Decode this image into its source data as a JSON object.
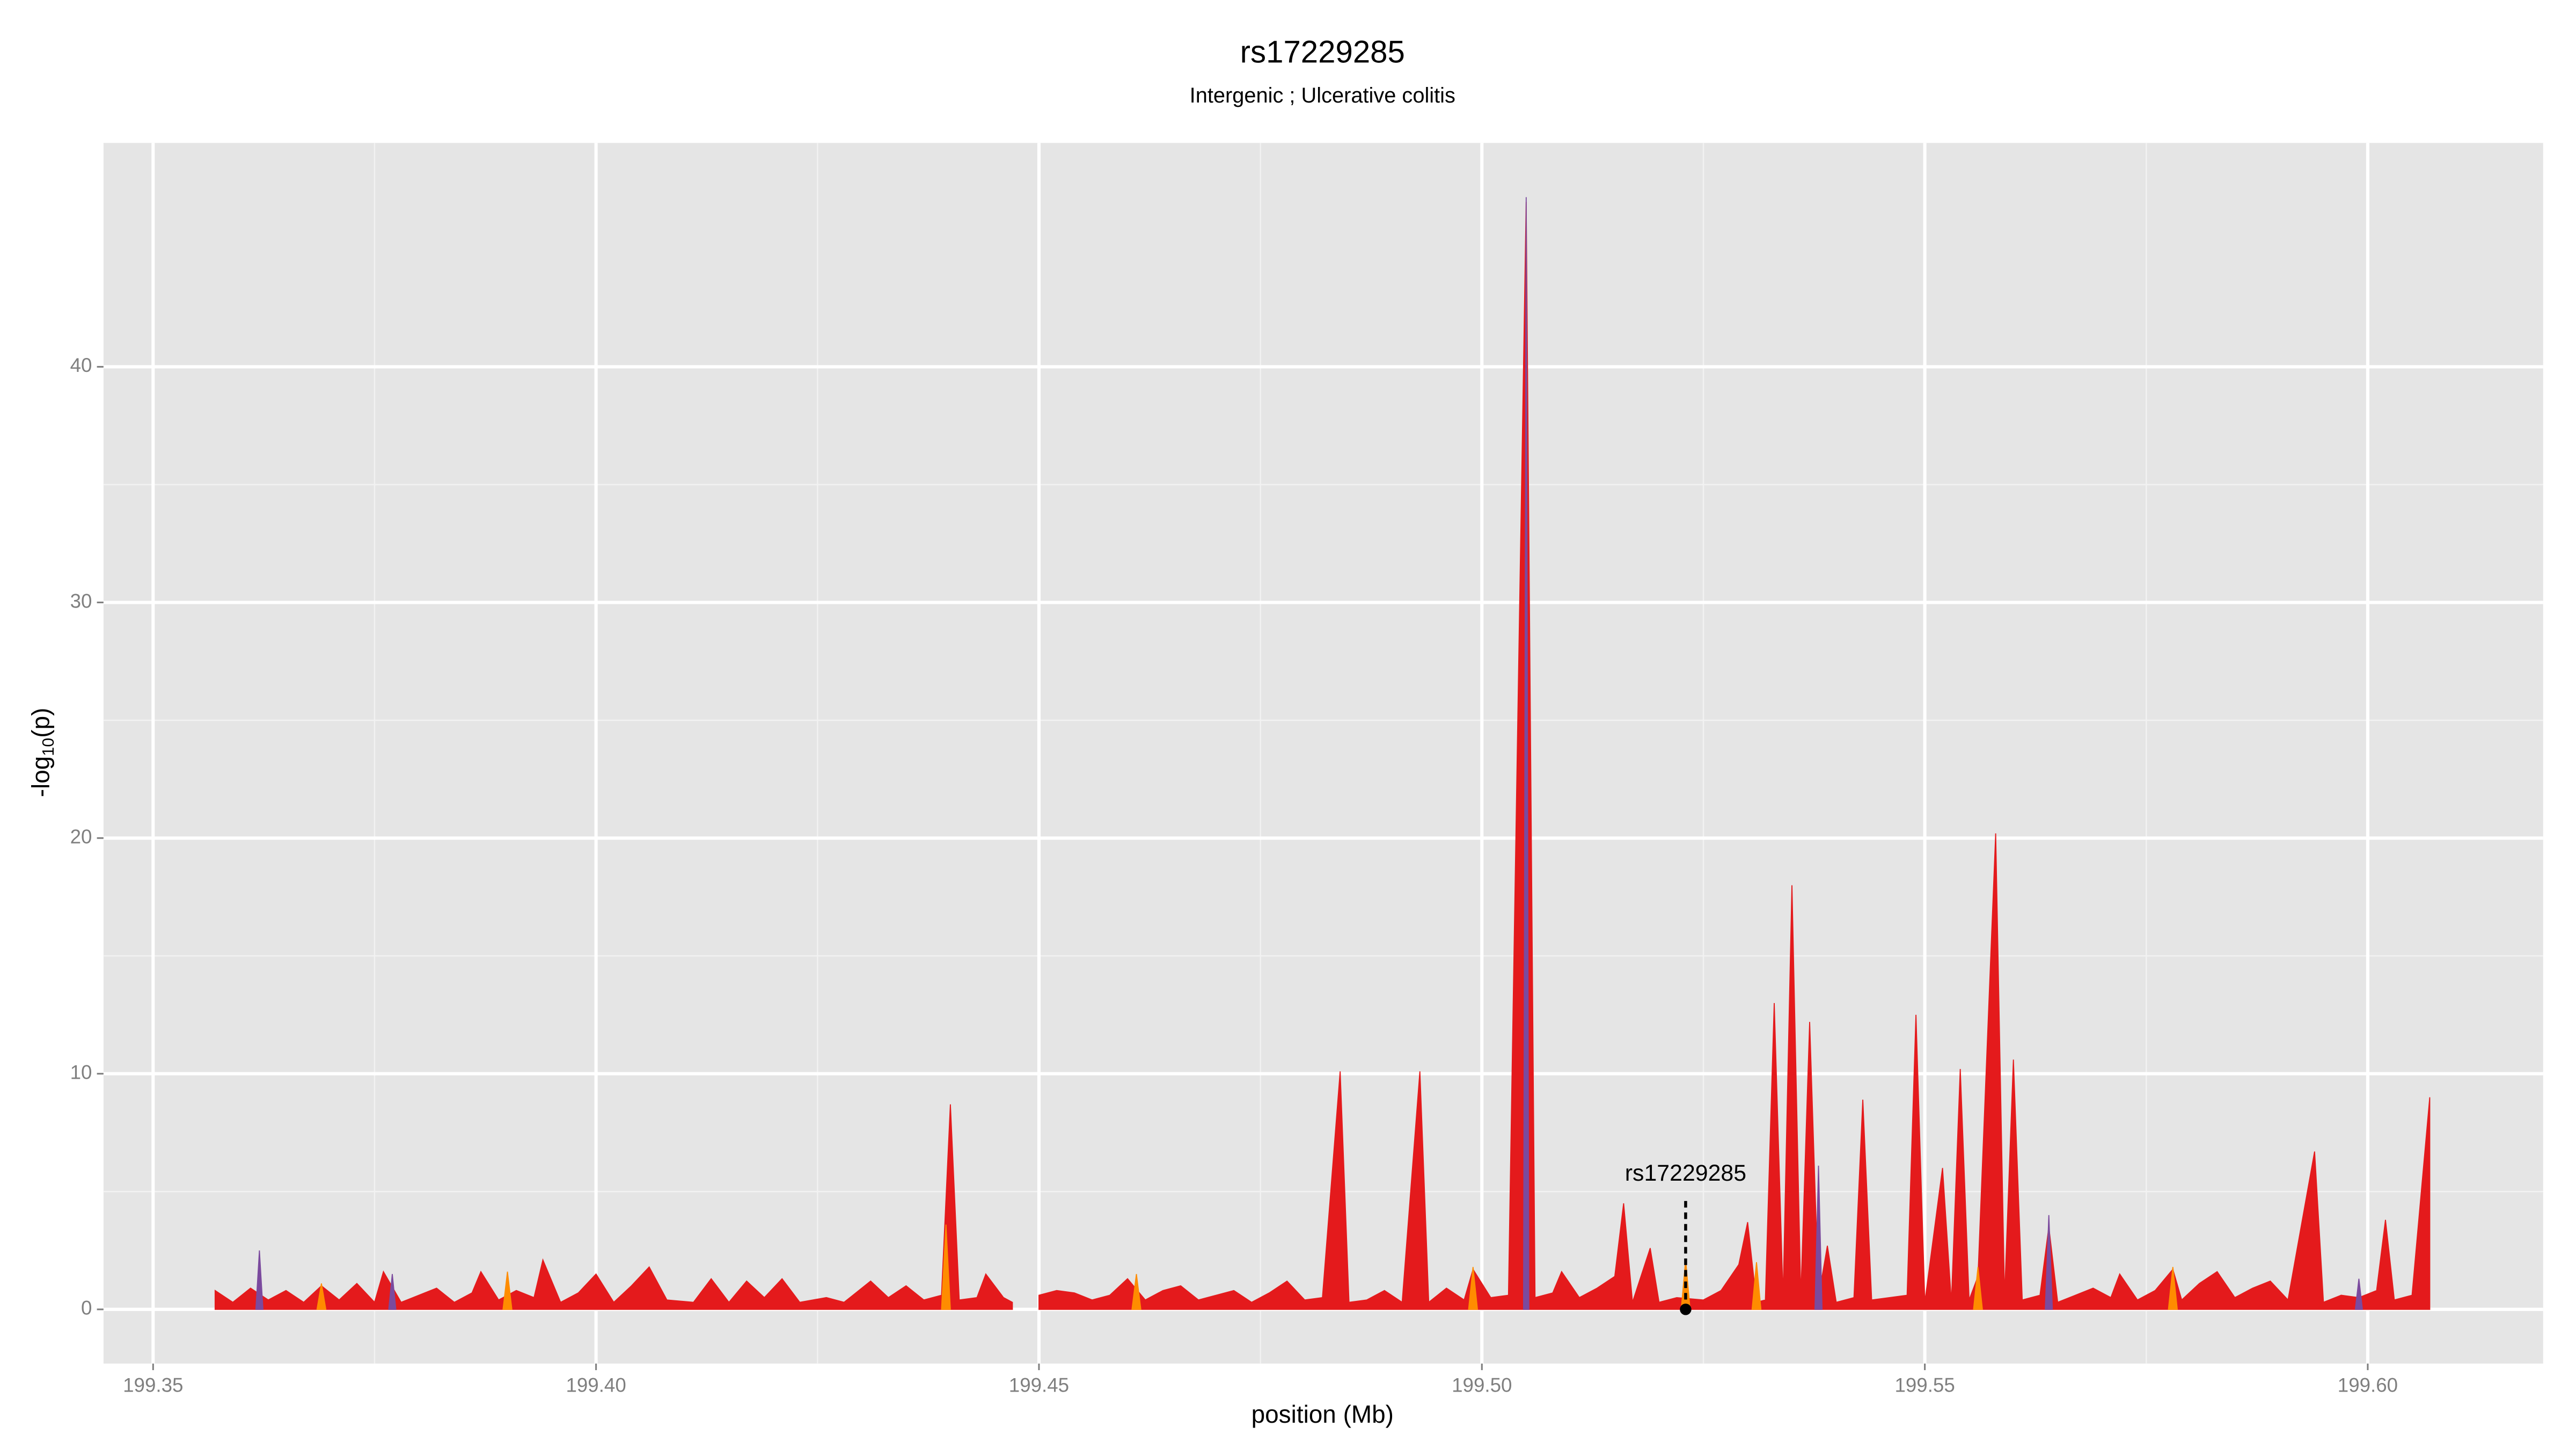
{
  "chart_data": {
    "type": "area",
    "title": "rs17229285",
    "subtitle": "Intergenic ; Ulcerative colitis",
    "x_label": "position (Mb)",
    "y_label": {
      "text": "-log",
      "sub": "10",
      "suffix": "(p)"
    },
    "xlim": [
      199.3444,
      199.6198
    ],
    "ylim": [
      -2.3,
      49.5
    ],
    "xticks": [
      199.35,
      {
        "value": 199.4,
        "label": "199.40"
      },
      199.45,
      {
        "value": 199.5,
        "label": "199.50"
      },
      199.55,
      {
        "value": 199.6,
        "label": "199.60"
      }
    ],
    "yticks": [
      0,
      10,
      20,
      30,
      40
    ],
    "grid": true,
    "series": [
      {
        "color": "#e41a1c",
        "x": [
          199.357,
          199.359,
          199.361,
          199.363,
          199.365,
          199.367,
          199.369,
          199.371,
          199.373,
          199.375,
          199.376,
          199.378,
          199.38,
          199.382,
          199.384,
          199.386,
          199.387,
          199.389,
          199.391,
          199.393,
          199.394,
          199.396,
          199.398,
          199.4,
          199.402,
          199.404,
          199.406,
          199.408,
          199.411,
          199.413,
          199.415,
          199.417,
          199.419,
          199.421,
          199.423,
          199.426,
          199.428,
          199.431,
          199.433,
          199.435,
          199.437,
          199.439,
          199.44,
          199.441,
          199.443,
          199.444,
          199.446,
          199.447,
          199.4485,
          199.45,
          199.452,
          199.454,
          199.456,
          199.458,
          199.46,
          199.462,
          199.464,
          199.466,
          199.468,
          199.47,
          199.472,
          199.474,
          199.476,
          199.478,
          199.48,
          199.482,
          199.484,
          199.485,
          199.487,
          199.489,
          199.491,
          199.493,
          199.494,
          199.496,
          199.498,
          199.499,
          199.501,
          199.503,
          199.505,
          199.506,
          199.508,
          199.509,
          199.511,
          199.513,
          199.515,
          199.516,
          199.517,
          199.519,
          199.52,
          199.522,
          199.525,
          199.527,
          199.529,
          199.53,
          199.531,
          199.532,
          199.533,
          199.534,
          199.535,
          199.536,
          199.537,
          199.538,
          199.539,
          199.54,
          199.542,
          199.543,
          199.544,
          199.546,
          199.548,
          199.549,
          199.55,
          199.552,
          199.553,
          199.554,
          199.555,
          199.556,
          199.558,
          199.559,
          199.56,
          199.561,
          199.563,
          199.564,
          199.565,
          199.567,
          199.569,
          199.571,
          199.572,
          199.574,
          199.576,
          199.578,
          199.579,
          199.581,
          199.583,
          199.585,
          199.587,
          199.589,
          199.591,
          199.594,
          199.595,
          199.597,
          199.599,
          199.601,
          199.602,
          199.603,
          199.605,
          199.607
        ],
        "values": [
          0.8,
          0.3,
          0.9,
          0.4,
          0.8,
          0.3,
          1.0,
          0.4,
          1.1,
          0.3,
          1.6,
          0.3,
          0.6,
          0.9,
          0.3,
          0.7,
          1.6,
          0.4,
          0.8,
          0.5,
          2.1,
          0.3,
          0.7,
          1.5,
          0.3,
          1.0,
          1.8,
          0.4,
          0.3,
          1.3,
          0.3,
          1.2,
          0.5,
          1.3,
          0.3,
          0.5,
          0.3,
          1.2,
          0.5,
          1.0,
          0.4,
          0.6,
          8.7,
          0.4,
          0.5,
          1.5,
          0.5,
          0.3,
          null,
          0.6,
          0.8,
          0.7,
          0.4,
          0.6,
          1.3,
          0.4,
          0.8,
          1.0,
          0.4,
          0.6,
          0.8,
          0.3,
          0.7,
          1.2,
          0.4,
          0.5,
          10.1,
          0.3,
          0.4,
          0.8,
          0.3,
          10.1,
          0.3,
          0.9,
          0.4,
          1.7,
          0.5,
          0.6,
          47.0,
          0.5,
          0.7,
          1.6,
          0.5,
          0.9,
          1.4,
          4.5,
          0.3,
          2.6,
          0.3,
          0.5,
          0.4,
          0.8,
          1.9,
          3.7,
          0.3,
          0.4,
          13.0,
          0.5,
          18.0,
          0.5,
          12.2,
          0.5,
          2.7,
          0.3,
          0.5,
          8.9,
          0.4,
          0.5,
          0.6,
          12.5,
          0.3,
          6.0,
          0.3,
          10.2,
          0.4,
          1.4,
          20.2,
          0.5,
          10.6,
          0.4,
          0.6,
          3.5,
          0.3,
          0.6,
          0.9,
          0.5,
          1.5,
          0.4,
          0.8,
          1.7,
          0.4,
          1.1,
          1.6,
          0.5,
          0.9,
          1.2,
          0.4,
          6.7,
          0.3,
          0.6,
          0.5,
          0.8,
          3.8,
          0.4,
          0.6,
          9.0
        ]
      },
      {
        "color": "#ff8c00",
        "x": [
          199.3685,
          199.369,
          199.3695,
          null,
          199.3895,
          199.39,
          199.3905,
          null,
          199.439,
          199.4395,
          199.44,
          null,
          199.4605,
          199.461,
          199.4615,
          null,
          199.4985,
          199.499,
          199.4995,
          null,
          199.5225,
          199.523,
          199.5235,
          null,
          199.5305,
          199.531,
          199.5315,
          null,
          199.5555,
          199.556,
          199.5565,
          null,
          199.5775,
          199.578,
          199.5785
        ],
        "values": [
          0,
          1.1,
          0,
          null,
          0,
          1.6,
          0,
          null,
          0,
          3.6,
          0,
          null,
          0,
          1.5,
          0,
          null,
          0,
          1.8,
          0,
          null,
          0,
          2.1,
          0,
          null,
          0,
          2.0,
          0,
          null,
          0,
          1.8,
          0,
          null,
          0,
          1.8,
          0
        ]
      },
      {
        "color": "#7b4a9e",
        "x": [
          199.3616,
          199.362,
          199.3624,
          null,
          199.3766,
          199.377,
          199.3774,
          null,
          199.5047,
          199.505,
          199.5053,
          null,
          199.5376,
          199.538,
          199.5384,
          null,
          199.5636,
          199.564,
          199.5644,
          null,
          199.5986,
          199.599,
          199.5994
        ],
        "values": [
          0,
          2.5,
          0,
          null,
          0,
          1.5,
          0,
          null,
          0,
          47.2,
          0,
          null,
          0,
          6.1,
          0,
          null,
          0,
          4.0,
          0,
          null,
          0,
          1.3,
          0
        ]
      }
    ],
    "annotation": {
      "label": "rs17229285",
      "x": 199.523,
      "y": 4.6
    }
  }
}
